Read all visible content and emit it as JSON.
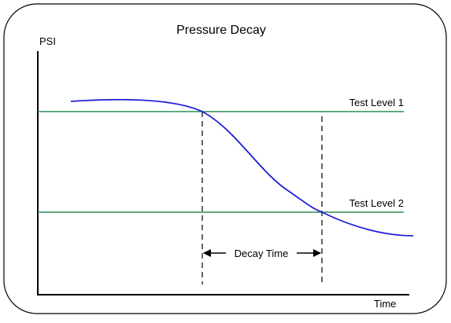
{
  "title": "Pressure Decay",
  "y_axis_label": "PSI",
  "x_axis_label": "Time",
  "levels": [
    "Test Level 1",
    "Test Level 2"
  ],
  "interval_label": "Decay Time"
}
